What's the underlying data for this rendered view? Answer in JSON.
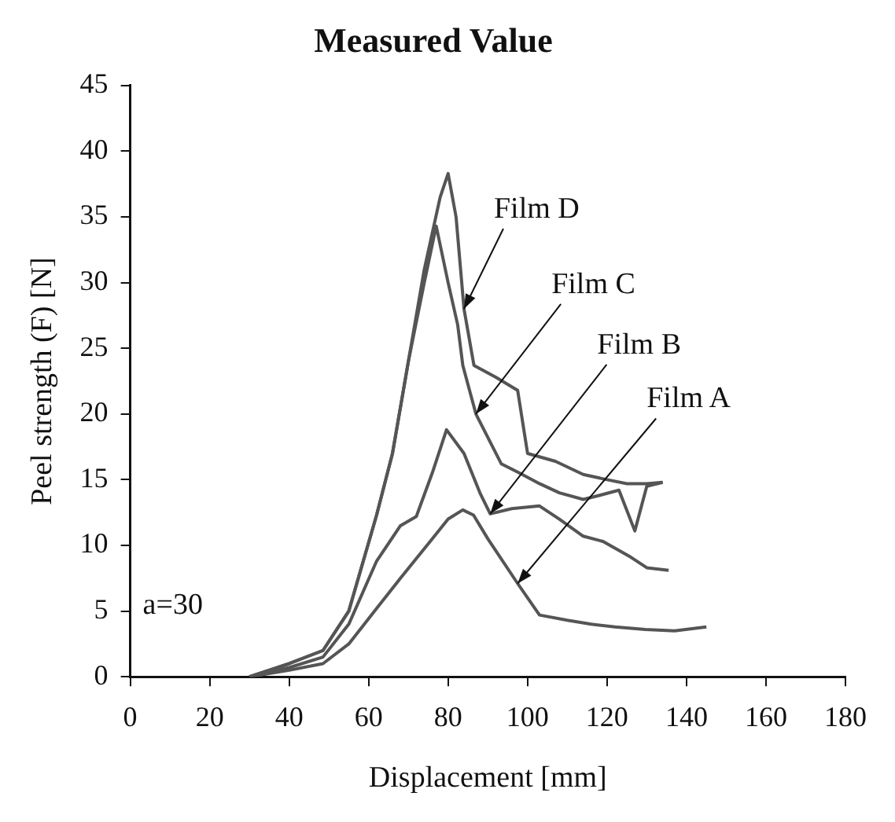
{
  "chart_data": {
    "type": "line",
    "title": "Measured Value",
    "xlabel": "Displacement [mm]",
    "ylabel": "Peel strength (F) [N]",
    "xlim": [
      0,
      180
    ],
    "xticks": [
      0,
      20,
      40,
      60,
      80,
      100,
      120,
      140,
      160,
      180
    ],
    "ylim": [
      0,
      45
    ],
    "yticks": [
      0,
      5,
      10,
      15,
      20,
      25,
      30,
      35,
      40,
      45
    ],
    "grid": false,
    "legend": false,
    "marker": "none",
    "line_style": "solid",
    "series": [
      {
        "color": "#555555",
        "x": [
          30,
          40,
          48.5,
          55,
          62,
          68,
          72,
          76,
          80,
          83.7,
          86.4,
          90,
          97.5,
          103,
          110,
          116,
          122,
          129.6,
          137,
          145
        ],
        "values": [
          0,
          0.5,
          1,
          2.5,
          5.2,
          7.5,
          9,
          10.5,
          12,
          12.7,
          12.3,
          10.5,
          7.1,
          4.7,
          4.3,
          4.0,
          3.8,
          3.6,
          3.5,
          3.8
        ]
      },
      {
        "color": "#555555",
        "x": [
          30,
          40,
          48.5,
          55,
          62,
          68,
          72,
          76,
          79.6,
          84,
          88,
          90.6,
          96,
          103,
          108,
          114,
          119,
          126,
          130,
          135.5
        ],
        "values": [
          0,
          0.7,
          1.5,
          4,
          8.8,
          11.5,
          12.2,
          15.5,
          18.8,
          17,
          14,
          12.4,
          12.8,
          13,
          12,
          10.7,
          10.3,
          9.1,
          8.3,
          8.1
        ]
      },
      {
        "color": "#555555",
        "x": [
          30,
          40,
          48.5,
          55,
          62,
          66,
          70,
          74,
          77,
          80,
          82.4,
          83.7,
          87,
          93.4,
          98,
          103,
          108,
          114,
          118,
          123,
          127,
          130,
          134
        ],
        "values": [
          0,
          1,
          2,
          5,
          12.3,
          17,
          24,
          30,
          34.3,
          30,
          26.8,
          23.7,
          20,
          16.2,
          15.5,
          14.7,
          14,
          13.5,
          13.8,
          14.2,
          11.1,
          14.5,
          14.8
        ]
      },
      {
        "color": "#555555",
        "x": [
          30,
          40,
          48.5,
          55,
          62,
          66,
          70,
          74,
          78,
          80,
          82,
          84,
          86.5,
          92,
          97.5,
          100,
          107,
          114,
          120,
          125,
          130,
          134
        ],
        "values": [
          0,
          1,
          2,
          5,
          12.3,
          17,
          24,
          31,
          36.5,
          38.3,
          35,
          28,
          23.7,
          22.8,
          21.8,
          17,
          16.4,
          15.4,
          15,
          14.7,
          14.7,
          14.8
        ]
      }
    ],
    "annotations": [
      {
        "text": "Film D",
        "x": 84,
        "y": 28
      },
      {
        "text": "Film C",
        "x": 87,
        "y": 20
      },
      {
        "text": "Film B",
        "x": 90.6,
        "y": 12.4
      },
      {
        "text": "Film A",
        "x": 97.5,
        "y": 7.1
      },
      "a=30"
    ]
  }
}
